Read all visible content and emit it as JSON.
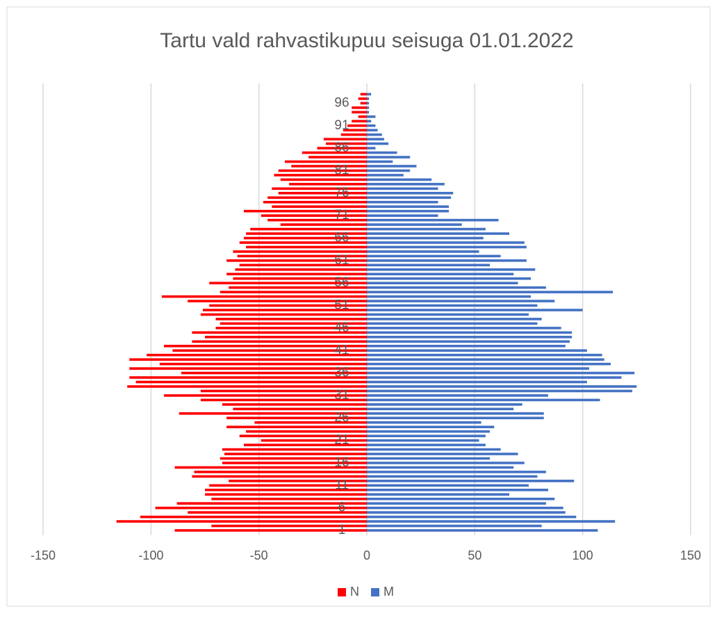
{
  "chart_data": {
    "type": "bar",
    "orientation": "horizontal",
    "title": "Tartu vald rahvastikupuu seisuga 01.01.2022",
    "categories": [
      "1",
      null,
      null,
      null,
      null,
      "6",
      null,
      null,
      null,
      null,
      "11",
      null,
      null,
      null,
      null,
      "16",
      null,
      null,
      null,
      null,
      "21",
      null,
      null,
      null,
      null,
      "26",
      null,
      null,
      null,
      null,
      "31",
      null,
      null,
      null,
      null,
      "36",
      null,
      null,
      null,
      null,
      "41",
      null,
      null,
      null,
      null,
      "46",
      null,
      null,
      null,
      null,
      "51",
      null,
      null,
      null,
      null,
      "56",
      null,
      null,
      null,
      null,
      "61",
      null,
      null,
      null,
      null,
      "66",
      null,
      null,
      null,
      null,
      "71",
      null,
      null,
      null,
      null,
      "76",
      null,
      null,
      null,
      null,
      "81",
      null,
      null,
      null,
      null,
      "86",
      null,
      null,
      null,
      null,
      "91",
      null,
      null,
      null,
      null,
      "96",
      null,
      null
    ],
    "series": [
      {
        "name": "N",
        "color": "#ff0000",
        "values": [
          -89,
          -72,
          -116,
          -105,
          -83,
          -98,
          -88,
          -72,
          -75,
          -75,
          -73,
          -64,
          -81,
          -80,
          -89,
          -67,
          -68,
          -66,
          -67,
          -57,
          -49,
          -59,
          -56,
          -65,
          -52,
          -65,
          -87,
          -62,
          -67,
          -77,
          -94,
          -77,
          -111,
          -107,
          -110,
          -86,
          -110,
          -96,
          -110,
          -102,
          -90,
          -94,
          -81,
          -75,
          -81,
          -70,
          -68,
          -70,
          -77,
          -76,
          -73,
          -83,
          -95,
          -68,
          -64,
          -73,
          -62,
          -65,
          -61,
          -59,
          -65,
          -60,
          -62,
          -56,
          -59,
          -57,
          -56,
          -54,
          -40,
          -46,
          -49,
          -57,
          -44,
          -48,
          -46,
          -41,
          -44,
          -36,
          -40,
          -43,
          -41,
          -35,
          -38,
          -27,
          -30,
          -23,
          -19,
          -20,
          -12,
          -11,
          -9,
          -7,
          -4,
          -7,
          -7,
          -3,
          -4,
          -3
        ]
      },
      {
        "name": "M",
        "color": "#4472c4",
        "values": [
          107,
          81,
          115,
          97,
          92,
          91,
          83,
          87,
          66,
          84,
          75,
          96,
          79,
          83,
          68,
          73,
          57,
          70,
          62,
          55,
          52,
          55,
          57,
          59,
          53,
          82,
          82,
          68,
          72,
          108,
          84,
          123,
          125,
          102,
          118,
          124,
          103,
          113,
          110,
          109,
          102,
          92,
          94,
          95,
          95,
          90,
          79,
          81,
          75,
          100,
          79,
          87,
          76,
          114,
          83,
          70,
          76,
          68,
          78,
          57,
          74,
          62,
          52,
          74,
          73,
          54,
          66,
          55,
          44,
          61,
          33,
          38,
          38,
          33,
          39,
          40,
          33,
          36,
          30,
          17,
          20,
          23,
          12,
          20,
          14,
          4,
          10,
          8,
          7,
          5,
          4,
          2,
          4,
          1,
          1,
          1,
          1,
          2
        ]
      }
    ],
    "xlim": [
      -150,
      150
    ],
    "xticks": [
      -150,
      -100,
      -50,
      0,
      50,
      100,
      150
    ],
    "grid": true,
    "legend": "bottom"
  }
}
